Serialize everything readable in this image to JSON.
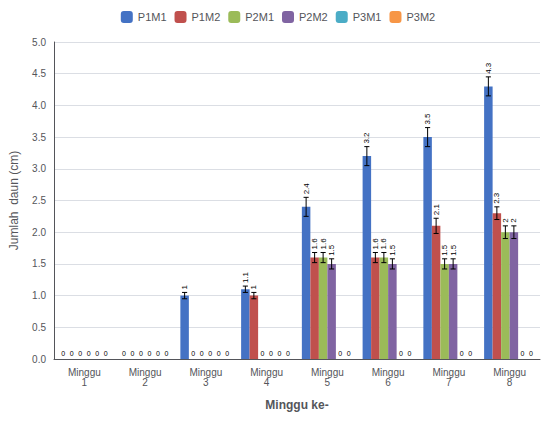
{
  "chart_data": {
    "type": "bar",
    "xlabel": "Minggu ke-",
    "ylabel": "Jumlah  daun (cm)",
    "categories": [
      "Minggu\n1",
      "Minggu\n2",
      "Minggu\n3",
      "Minggu\n4",
      "Minggu\n5",
      "Minggu\n6",
      "Minggu\n7",
      "Minggu\n8"
    ],
    "series": [
      {
        "name": "P1M1",
        "color": "#4472C4",
        "values": [
          0,
          0,
          1.0,
          1.1,
          2.4,
          3.2,
          3.5,
          4.3
        ],
        "errors": [
          0,
          0,
          0.05,
          0.05,
          0.15,
          0.15,
          0.15,
          0.15
        ]
      },
      {
        "name": "P1M2",
        "color": "#C0504D",
        "values": [
          0,
          0,
          0,
          1.0,
          1.6,
          1.6,
          2.1,
          2.3
        ],
        "errors": [
          0,
          0,
          0,
          0.05,
          0.08,
          0.08,
          0.12,
          0.1
        ]
      },
      {
        "name": "P2M1",
        "color": "#9BBB59",
        "values": [
          0,
          0,
          0,
          0,
          1.6,
          1.6,
          1.5,
          2.0
        ],
        "errors": [
          0,
          0,
          0,
          0,
          0.08,
          0.08,
          0.08,
          0.1
        ]
      },
      {
        "name": "P2M2",
        "color": "#8064A2",
        "values": [
          0,
          0,
          0,
          0,
          1.5,
          1.5,
          1.5,
          2.0
        ],
        "errors": [
          0,
          0,
          0,
          0,
          0.08,
          0.08,
          0.08,
          0.1
        ]
      },
      {
        "name": "P3M1",
        "color": "#4BACC6",
        "values": [
          0,
          0,
          0,
          0,
          0,
          0,
          0,
          0
        ],
        "errors": [
          0,
          0,
          0,
          0,
          0,
          0,
          0,
          0
        ]
      },
      {
        "name": "P3M2",
        "color": "#F79646",
        "values": [
          0,
          0,
          0,
          0,
          0,
          0,
          0,
          0
        ],
        "errors": [
          0,
          0,
          0,
          0,
          0,
          0,
          0,
          0
        ]
      }
    ],
    "ylim": [
      0,
      5
    ],
    "yticks": [
      {
        "value": 0,
        "label": "0.0"
      },
      0.5,
      {
        "value": 1.0,
        "label": "1.0"
      },
      1.5,
      {
        "value": 2.0,
        "label": "2.0"
      },
      2.5,
      {
        "value": 3.0,
        "label": "3.0"
      },
      3.5,
      {
        "value": 4.0,
        "label": "4.0"
      },
      4.5,
      {
        "value": 5.0,
        "label": "5.0"
      }
    ],
    "grid": true,
    "legend": "top",
    "data_labels": true
  }
}
